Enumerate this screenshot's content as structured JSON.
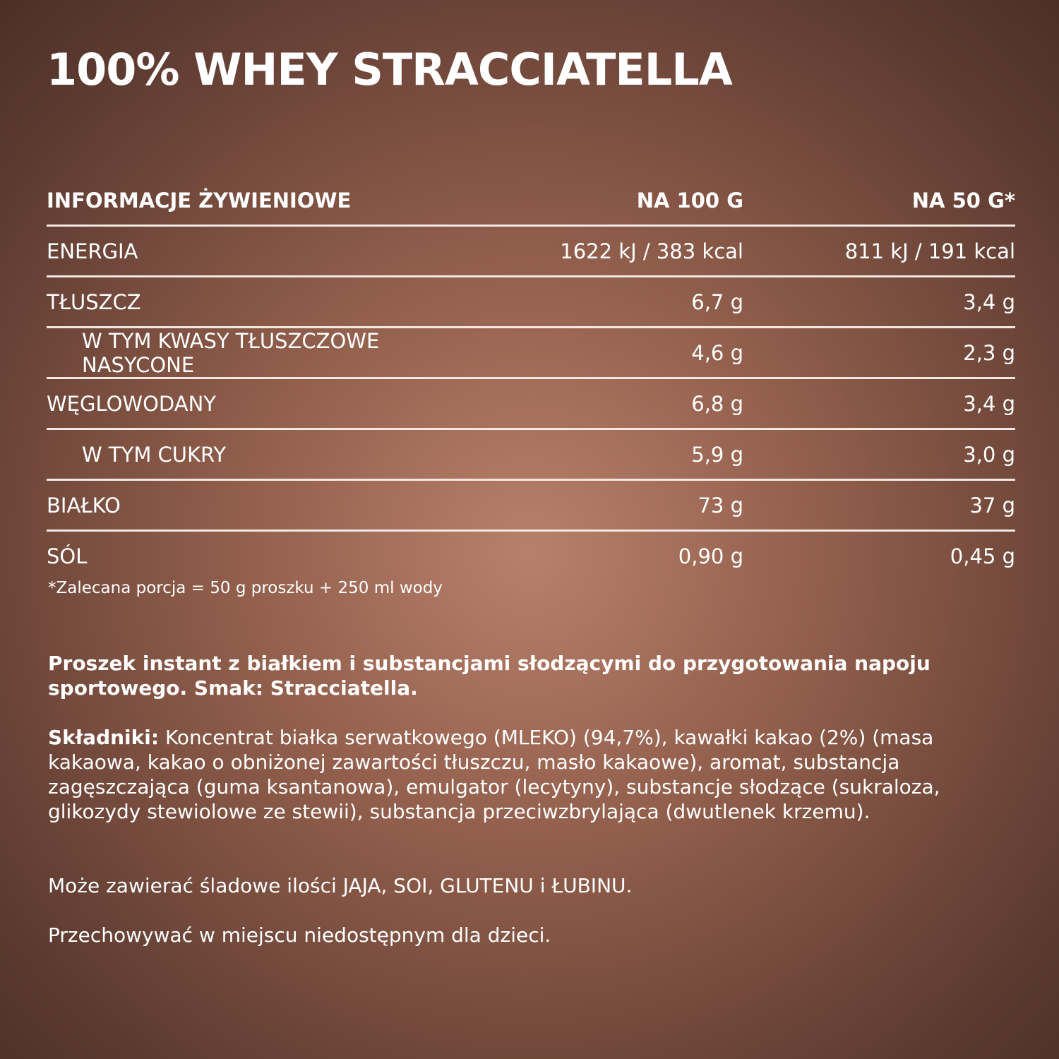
{
  "title": "100% WHEY STRACCIATELLA",
  "table": {
    "header": [
      "INFORMACJE ŻYWIENIOWE",
      "NA 100 G",
      "NA 50 G*"
    ],
    "rows": [
      {
        "label": "ENERGIA",
        "v100": "1622 kJ / 383 kcal",
        "v50": "811 kJ / 191 kcal",
        "indent": false
      },
      {
        "label": "TŁUSZCZ",
        "v100": "6,7 g",
        "v50": "3,4 g",
        "indent": false
      },
      {
        "label": "W TYM KWASY TŁUSZCZOWE NASYCONE",
        "v100": "4,6 g",
        "v50": "2,3 g",
        "indent": true
      },
      {
        "label": "WĘGLOWODANY",
        "v100": "6,8 g",
        "v50": "3,4 g",
        "indent": false
      },
      {
        "label": "W TYM CUKRY",
        "v100": "5,9 g",
        "v50": "3,0 g",
        "indent": true
      },
      {
        "label": "BIAŁKO",
        "v100": "73 g",
        "v50": "37 g",
        "indent": false
      },
      {
        "label": "SÓL",
        "v100": "0,90 g",
        "v50": "0,45 g",
        "indent": false
      }
    ]
  },
  "footnote": "*Zalecana porcja = 50 g proszku + 250 ml wody",
  "description": "Proszek instant z białkiem i substancjami słodzącymi do przygotowania napoju sportowego. Smak: Stracciatella.",
  "ingredients_label": "Składniki:",
  "ingredients": " Koncentrat białka serwatkowego (MLEKO) (94,7%), kawałki kakao (2%) (masa kakaowa, kakao o obniżonej zawartości tłuszczu, masło kakaowe), aromat, substancja zagęszczająca (guma ksantanowa), emulgator (lecytyny), substancje słodzące (sukraloza, glikozydy stewiolowe ze stewii), substancja przeciwzbrylająca (dwutlenek krzemu).",
  "allergens": "Może zawierać śladowe ilości JAJA, SOI, GLUTENU i ŁUBINU.",
  "storage": "Przechowywać w miejscu niedostępnym dla dzieci."
}
